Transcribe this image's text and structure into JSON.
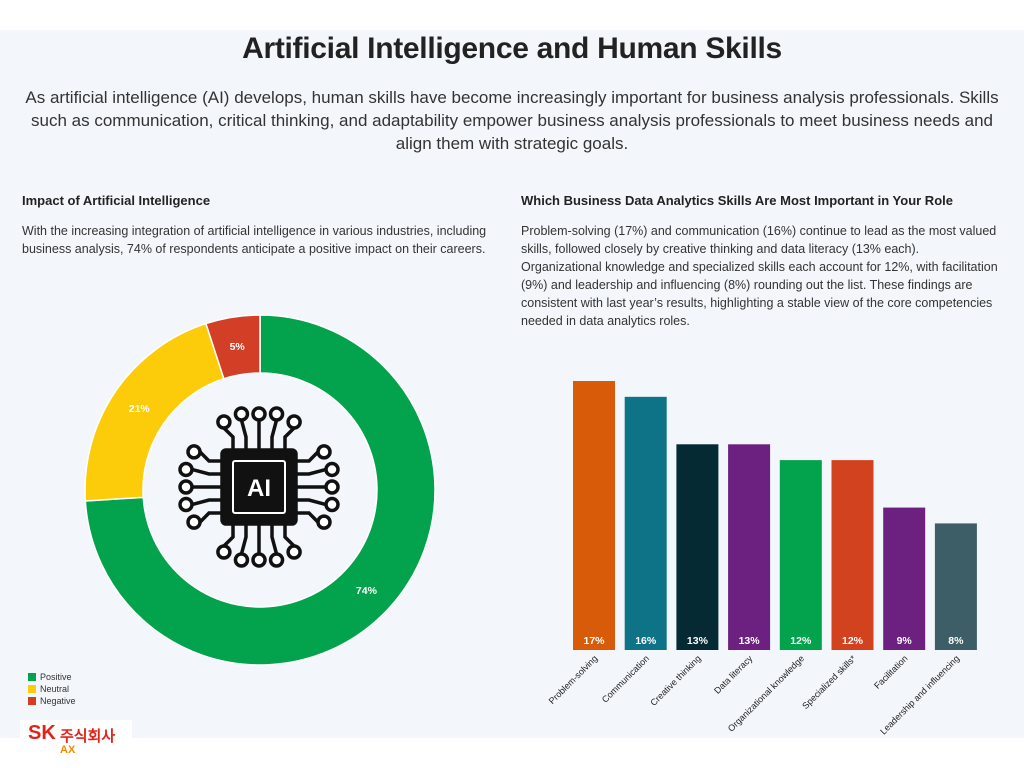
{
  "title": "Artificial Intelligence and Human Skills",
  "subtitle": "As artificial intelligence (AI) develops, human skills have become increasingly important for business analysis professionals. Skills such as communication, critical thinking, and adaptability empower business analysis professionals to meet business needs and align them with strategic goals.",
  "left": {
    "heading": "Impact of Artificial Intelligence",
    "text": "With the increasing integration of artificial intelligence in various industries, including business analysis, 74% of respondents anticipate a positive impact on their careers."
  },
  "right": {
    "heading": "Which Business Data Analytics Skills Are Most Important in Your Role",
    "text": "Problem-solving (17%) and communication (16%) continue to lead as the most valued skills, followed closely by creative thinking and data literacy (13% each). Organizational knowledge and specialized skills each account for 12%, with facilitation (9%) and leadership and influencing (8%) rounding out the list. These findings are consistent with last year’s results, highlighting a stable view of the core competencies needed in data analytics roles."
  },
  "center_icon": "ai-chip-icon",
  "center_icon_label": "AI",
  "logo": {
    "sk": "SK",
    "korean": "주식회사",
    "ax": "AX"
  },
  "chart_data": [
    {
      "type": "pie",
      "style": "donut",
      "title": "",
      "labels": [
        "Positive",
        "Neutral",
        "Negative"
      ],
      "values": [
        74,
        21,
        5
      ],
      "value_labels": [
        "74%",
        "21%",
        "5%"
      ],
      "colors": [
        "#03a24d",
        "#fccc0a",
        "#d23f26"
      ],
      "legend": "bottom-left"
    },
    {
      "type": "bar",
      "title": "",
      "categories": [
        "Problem-solving",
        "Communication",
        "Creative thinking",
        "Data literacy",
        "Organizational knowledge",
        "Specialized skills*",
        "Facilitation",
        "Leadership and influencing"
      ],
      "values": [
        17,
        16,
        13,
        13,
        12,
        12,
        9,
        8
      ],
      "value_labels": [
        "17%",
        "16%",
        "13%",
        "13%",
        "12%",
        "12%",
        "9%",
        "8%"
      ],
      "colors": [
        "#d85b0a",
        "#0f7388",
        "#062a34",
        "#6c2080",
        "#03a24d",
        "#d2421f",
        "#6c2080",
        "#3e5e67"
      ],
      "ylim": [
        0,
        17
      ],
      "xlabel": "",
      "ylabel": "",
      "grid": false
    }
  ]
}
